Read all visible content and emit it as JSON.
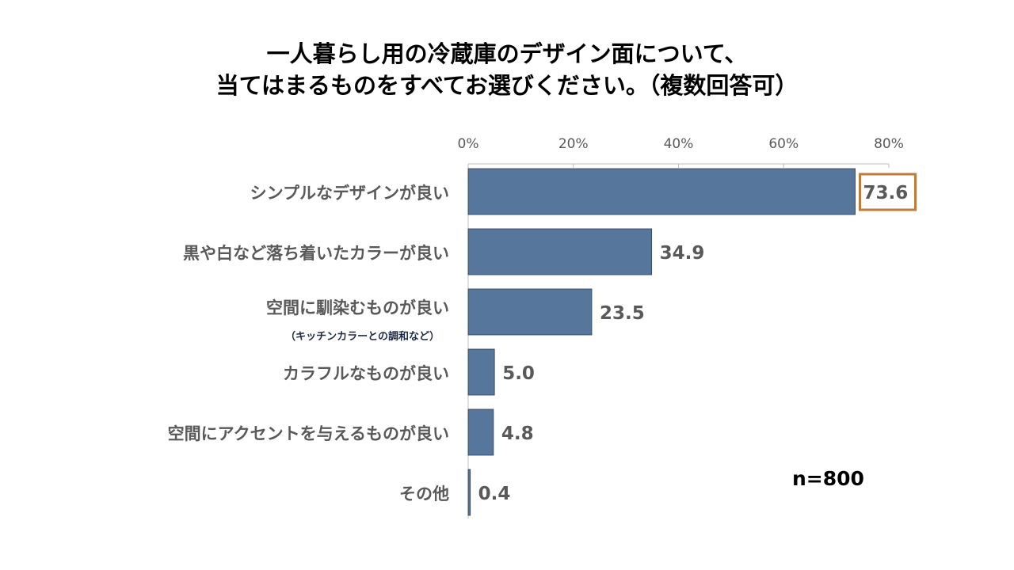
{
  "title_lines": [
    "一人暮らし用の冷蔵庫のデザイン面について、",
    "当てはまるものをすべてお選びください。（複数回答可）"
  ],
  "sample_size": "n=800",
  "colors": {
    "bar": "#56779b",
    "highlight": "#c07a3a",
    "value_text": "#595959",
    "axis": "#bfbfbf",
    "tick_text": "#595959"
  },
  "chart_data": {
    "type": "bar",
    "orientation": "horizontal",
    "categories": [
      "シンプルなデザインが良い",
      "黒や白など落ち着いたカラーが良い",
      "空間に馴染むものが良い",
      "カラフルなものが良い",
      "空間にアクセントを与えるものが良い",
      "その他"
    ],
    "category_notes": [
      "",
      "",
      "（キッチンカラーとの調和など）",
      "",
      "",
      ""
    ],
    "values": [
      73.6,
      34.9,
      23.5,
      5.0,
      4.8,
      0.4
    ],
    "value_labels": [
      "73.6",
      "34.9",
      "23.5",
      "5.0",
      "4.8",
      "0.4"
    ],
    "highlight_index": 0,
    "xlim": [
      0,
      80
    ],
    "xticks": [
      0,
      20,
      40,
      60,
      80
    ],
    "xtick_labels": [
      "0%",
      "20%",
      "40%",
      "60%",
      "80%"
    ],
    "axis_position": "top",
    "grid": false,
    "legend": false,
    "title": "一人暮らし用の冷蔵庫のデザイン面について、当てはまるものをすべてお選びください。（複数回答可）"
  }
}
